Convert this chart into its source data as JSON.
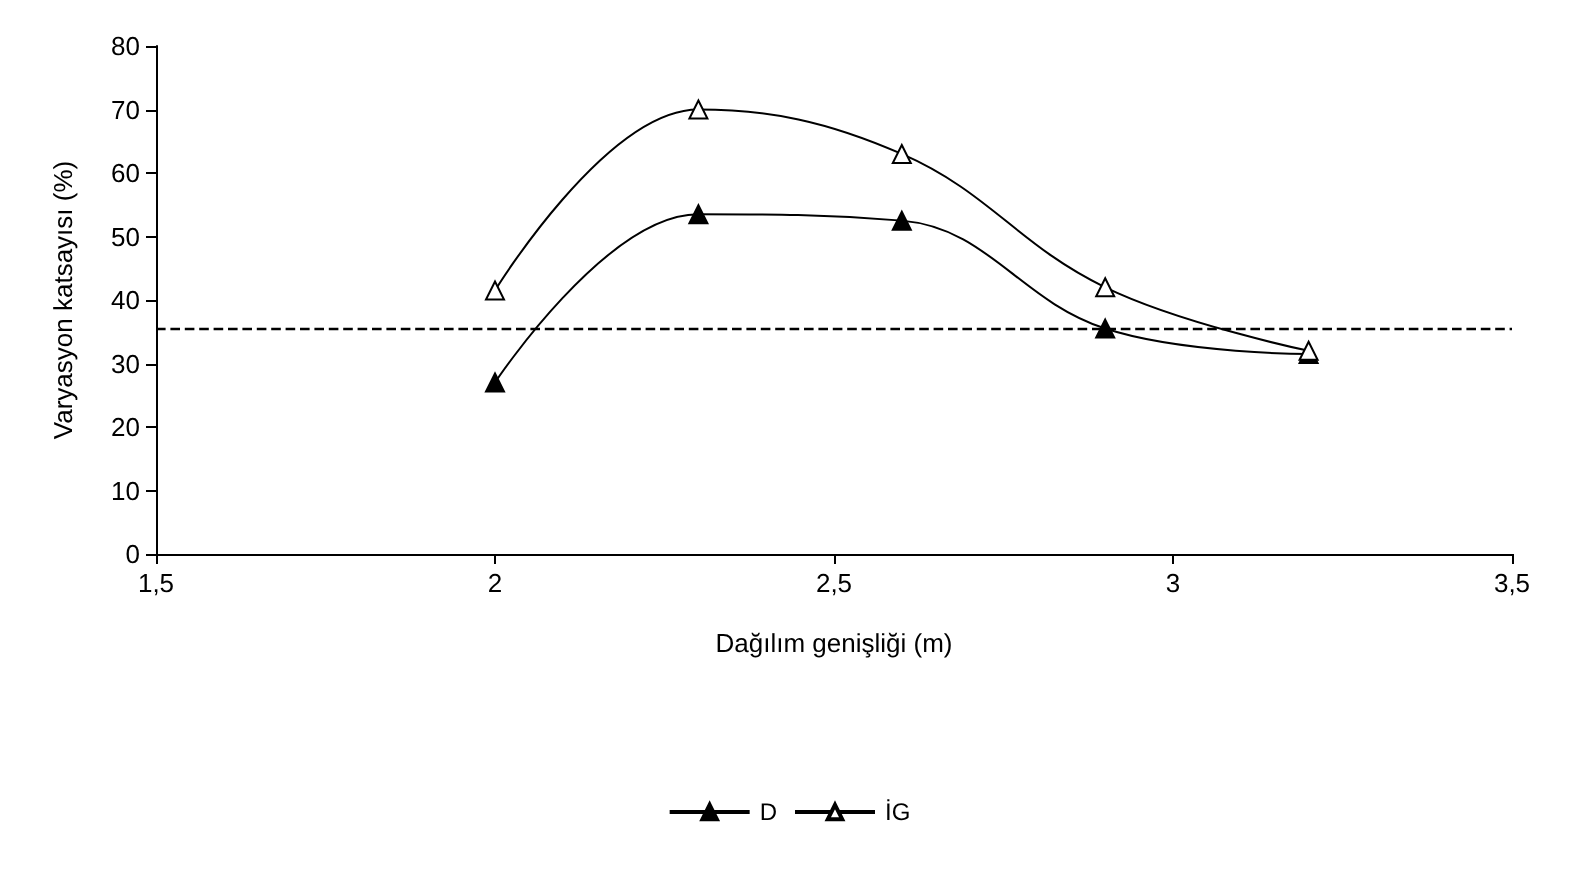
{
  "chart_data": {
    "type": "line",
    "xlabel": "Dağılım genişliği (m)",
    "ylabel": "Varyasyon katsayısı (%)",
    "x": [
      2,
      2.3,
      2.6,
      2.9,
      3.2
    ],
    "series": [
      {
        "name": "D",
        "color": "#000000",
        "values": [
          27,
          53.5,
          52.5,
          35.5,
          31.5
        ],
        "marker": "triangle"
      },
      {
        "name": "İG",
        "color": "#000000",
        "values": [
          41.5,
          70,
          63,
          42,
          32
        ],
        "marker": "triangle"
      }
    ],
    "xlim": [
      1.5,
      3.5
    ],
    "xticks": [
      {
        "value": 1.5,
        "label": "1,5"
      },
      2,
      {
        "value": 2.5,
        "label": "2,5"
      },
      3,
      {
        "value": 3.5,
        "label": "3,5"
      }
    ],
    "ylim": [
      0,
      80
    ],
    "yticks": [
      0,
      10,
      20,
      30,
      40,
      50,
      60,
      70,
      80
    ],
    "ref_lines": [
      {
        "axis": "y",
        "value": 35.5,
        "line_style": "dashed",
        "color": "#000000"
      }
    ],
    "grid": false,
    "legend": "bottom",
    "line_style": "solid"
  }
}
